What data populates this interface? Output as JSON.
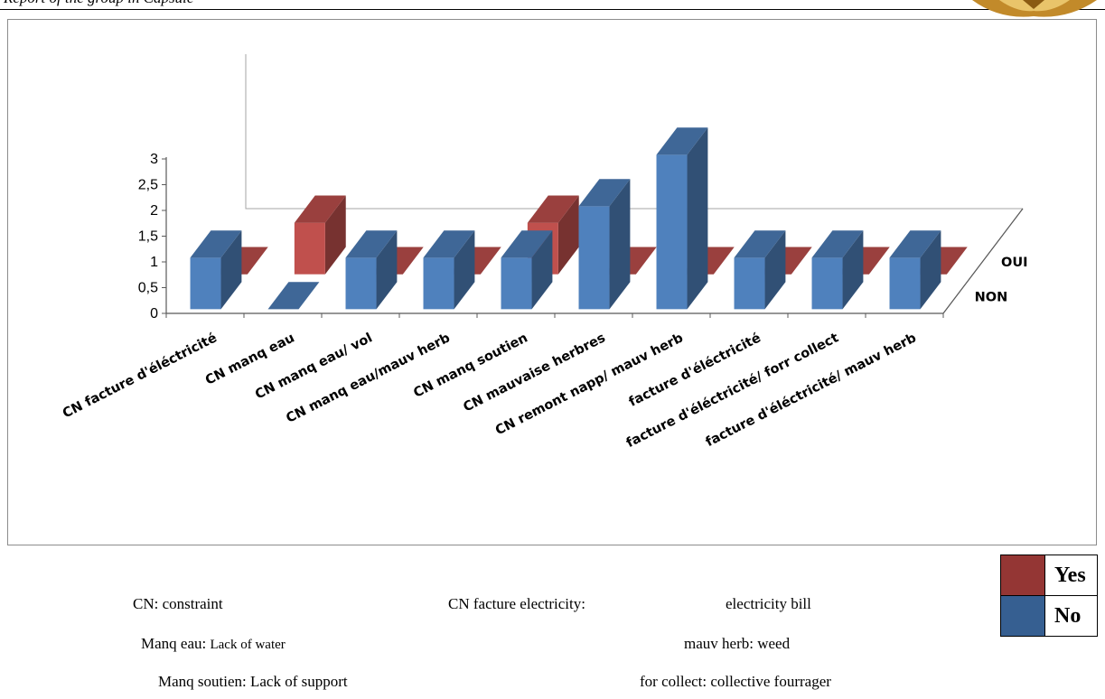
{
  "header": {
    "text": "Report of the group in Capsule"
  },
  "chart_data": {
    "type": "bar",
    "subtype": "3d-column",
    "title": "",
    "categories": [
      "CN facture d'éléctricité",
      "CN manq eau",
      "CN manq eau/ vol",
      "CN manq eau/mauv herb",
      "CN manq soutien",
      "CN mauvaise herbres",
      "CN remont napp/ mauv herb",
      "facture d'éléctricité",
      "facture d'éléctricité/ forr collect",
      "facture d'éléctricité/ mauv herb"
    ],
    "series": [
      {
        "name": "NON",
        "color": "#4f81bd",
        "values": [
          1,
          0,
          1,
          1,
          1,
          2,
          3,
          1,
          1,
          1
        ]
      },
      {
        "name": "OUI",
        "color": "#c0504d",
        "values": [
          0,
          1,
          0,
          0,
          1,
          0,
          0,
          0,
          0,
          0
        ]
      }
    ],
    "y_ticks": [
      "0",
      "0,5",
      "1",
      "1,5",
      "2",
      "2,5",
      "3"
    ],
    "ylim": [
      0,
      3
    ],
    "grid": false,
    "legend": "series labels on right depth axis"
  },
  "notes": [
    {
      "text": "CN: constraint"
    },
    {
      "text": "CN facture electricity:"
    },
    {
      "text": "electricity bill"
    },
    {
      "prefix": "Manq eau:",
      "text": "Lack of water"
    },
    {
      "text": "mauv herb: weed"
    },
    {
      "text": "Manq soutien: Lack of support"
    },
    {
      "text": "for collect: collective fourrager"
    }
  ],
  "legend_table": [
    {
      "label": "Yes",
      "color": "#943634"
    },
    {
      "label": "No",
      "color": "#365f91"
    }
  ]
}
